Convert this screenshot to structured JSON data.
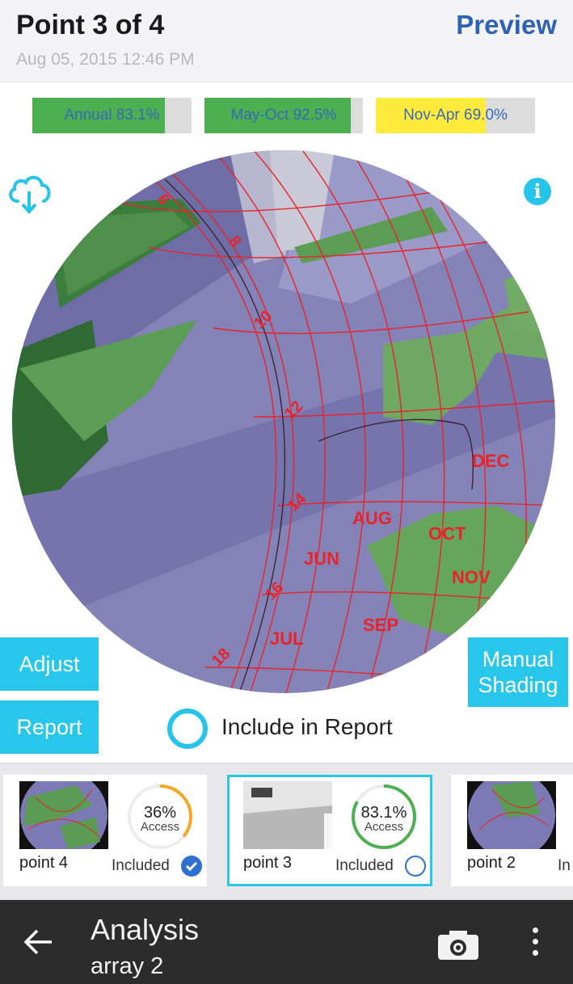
{
  "header": {
    "title": "Point 3 of 4",
    "date": "Aug 05, 2015 12:46 PM",
    "preview_label": "Preview"
  },
  "access_bars": [
    {
      "label": "Annual 83.1%",
      "value": 0.831,
      "color": "#4caf50"
    },
    {
      "label": "May-Oct 92.5%",
      "value": 0.925,
      "color": "#4caf50"
    },
    {
      "label": "Nov-Apr 69.0%",
      "value": 0.69,
      "color": "#ffeb3b"
    }
  ],
  "sunpath": {
    "hour_labels": [
      "6",
      "8",
      "10",
      "12",
      "14",
      "16",
      "18"
    ],
    "month_labels": [
      "DEC",
      "OCT",
      "NOV",
      "AUG",
      "JUN",
      "SEP",
      "JUL"
    ],
    "line_color": "#e8232a"
  },
  "icons": {
    "cloud": "cloud-download-icon",
    "info": "info-icon",
    "back": "arrow-left-icon",
    "camera": "camera-icon",
    "more": "more-vertical-icon"
  },
  "info_glyph": "i",
  "buttons": {
    "adjust": "Adjust",
    "report": "Report",
    "manual_shading": "Manual Shading"
  },
  "include_in_report": {
    "label": "Include in Report",
    "checked": false
  },
  "points": [
    {
      "name": "point 4",
      "percent": "36%",
      "access_label": "Access",
      "included_label": "Included",
      "included": true,
      "progress": 0.36,
      "ring_color": "#f5a623",
      "selected": false
    },
    {
      "name": "point 3",
      "percent": "83.1%",
      "access_label": "Access",
      "included_label": "Included",
      "included": false,
      "progress": 0.831,
      "ring_color": "#4caf50",
      "selected": true
    },
    {
      "name": "point 2",
      "partial_label": "In",
      "selected": false
    }
  ],
  "bottom_bar": {
    "title": "Analysis",
    "subtitle": "array 2"
  }
}
